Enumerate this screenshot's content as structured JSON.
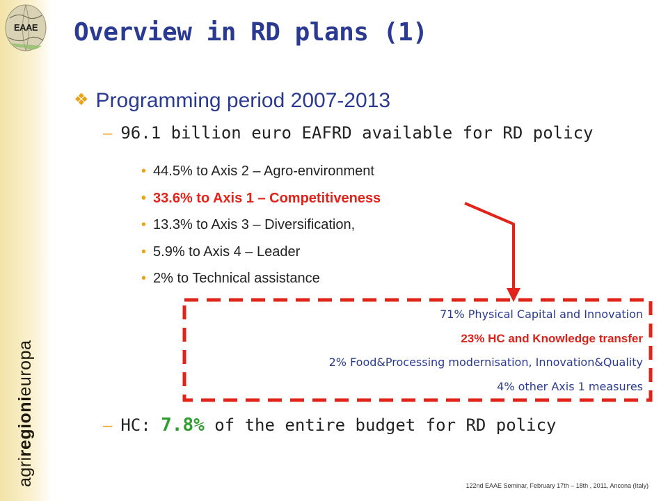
{
  "logo": {
    "text": "EAAE"
  },
  "brand": {
    "prefix": "agri",
    "bold": "regioni",
    "suffix": "europa"
  },
  "title": "Overview in RD plans (1)",
  "level1": {
    "text": "Programming period 2007-2013"
  },
  "level2_items": [
    {
      "text": "96.1 billion euro EAFRD available for RD policy"
    }
  ],
  "bullets": [
    {
      "text": "44.5% to Axis 2 – Agro-environment",
      "highlight": false
    },
    {
      "text": "33.6% to Axis 1 – Competitiveness",
      "highlight": true
    },
    {
      "text": "13.3% to Axis 3 – Diversification,",
      "highlight": false
    },
    {
      "text": "5.9% to Axis 4 – Leader",
      "highlight": false
    },
    {
      "text": "2% to Technical assistance",
      "highlight": false
    }
  ],
  "breakdown": [
    {
      "text": "71% Physical Capital and Innovation",
      "highlight": false
    },
    {
      "text": "23% HC and Knowledge transfer",
      "highlight": true
    },
    {
      "text": "2% Food&Processing modernisation, Innovation&Quality",
      "highlight": false
    },
    {
      "text": "4% other Axis 1 measures",
      "highlight": false
    }
  ],
  "hc_line": {
    "prefix": "HC: ",
    "value": "7.8%",
    "suffix": " of the entire budget for RD policy"
  },
  "footer": "122nd EAAE Seminar, February 17th – 18th , 2011, Ancona (Italy)",
  "colors": {
    "title": "#2b3a91",
    "accent": "#e8a317",
    "highlight": "#e2231a",
    "hc": "#2e9e2e"
  },
  "icons": {
    "bullet_level1": "diamond-cluster-icon",
    "arrow": "red-arrow-icon"
  }
}
